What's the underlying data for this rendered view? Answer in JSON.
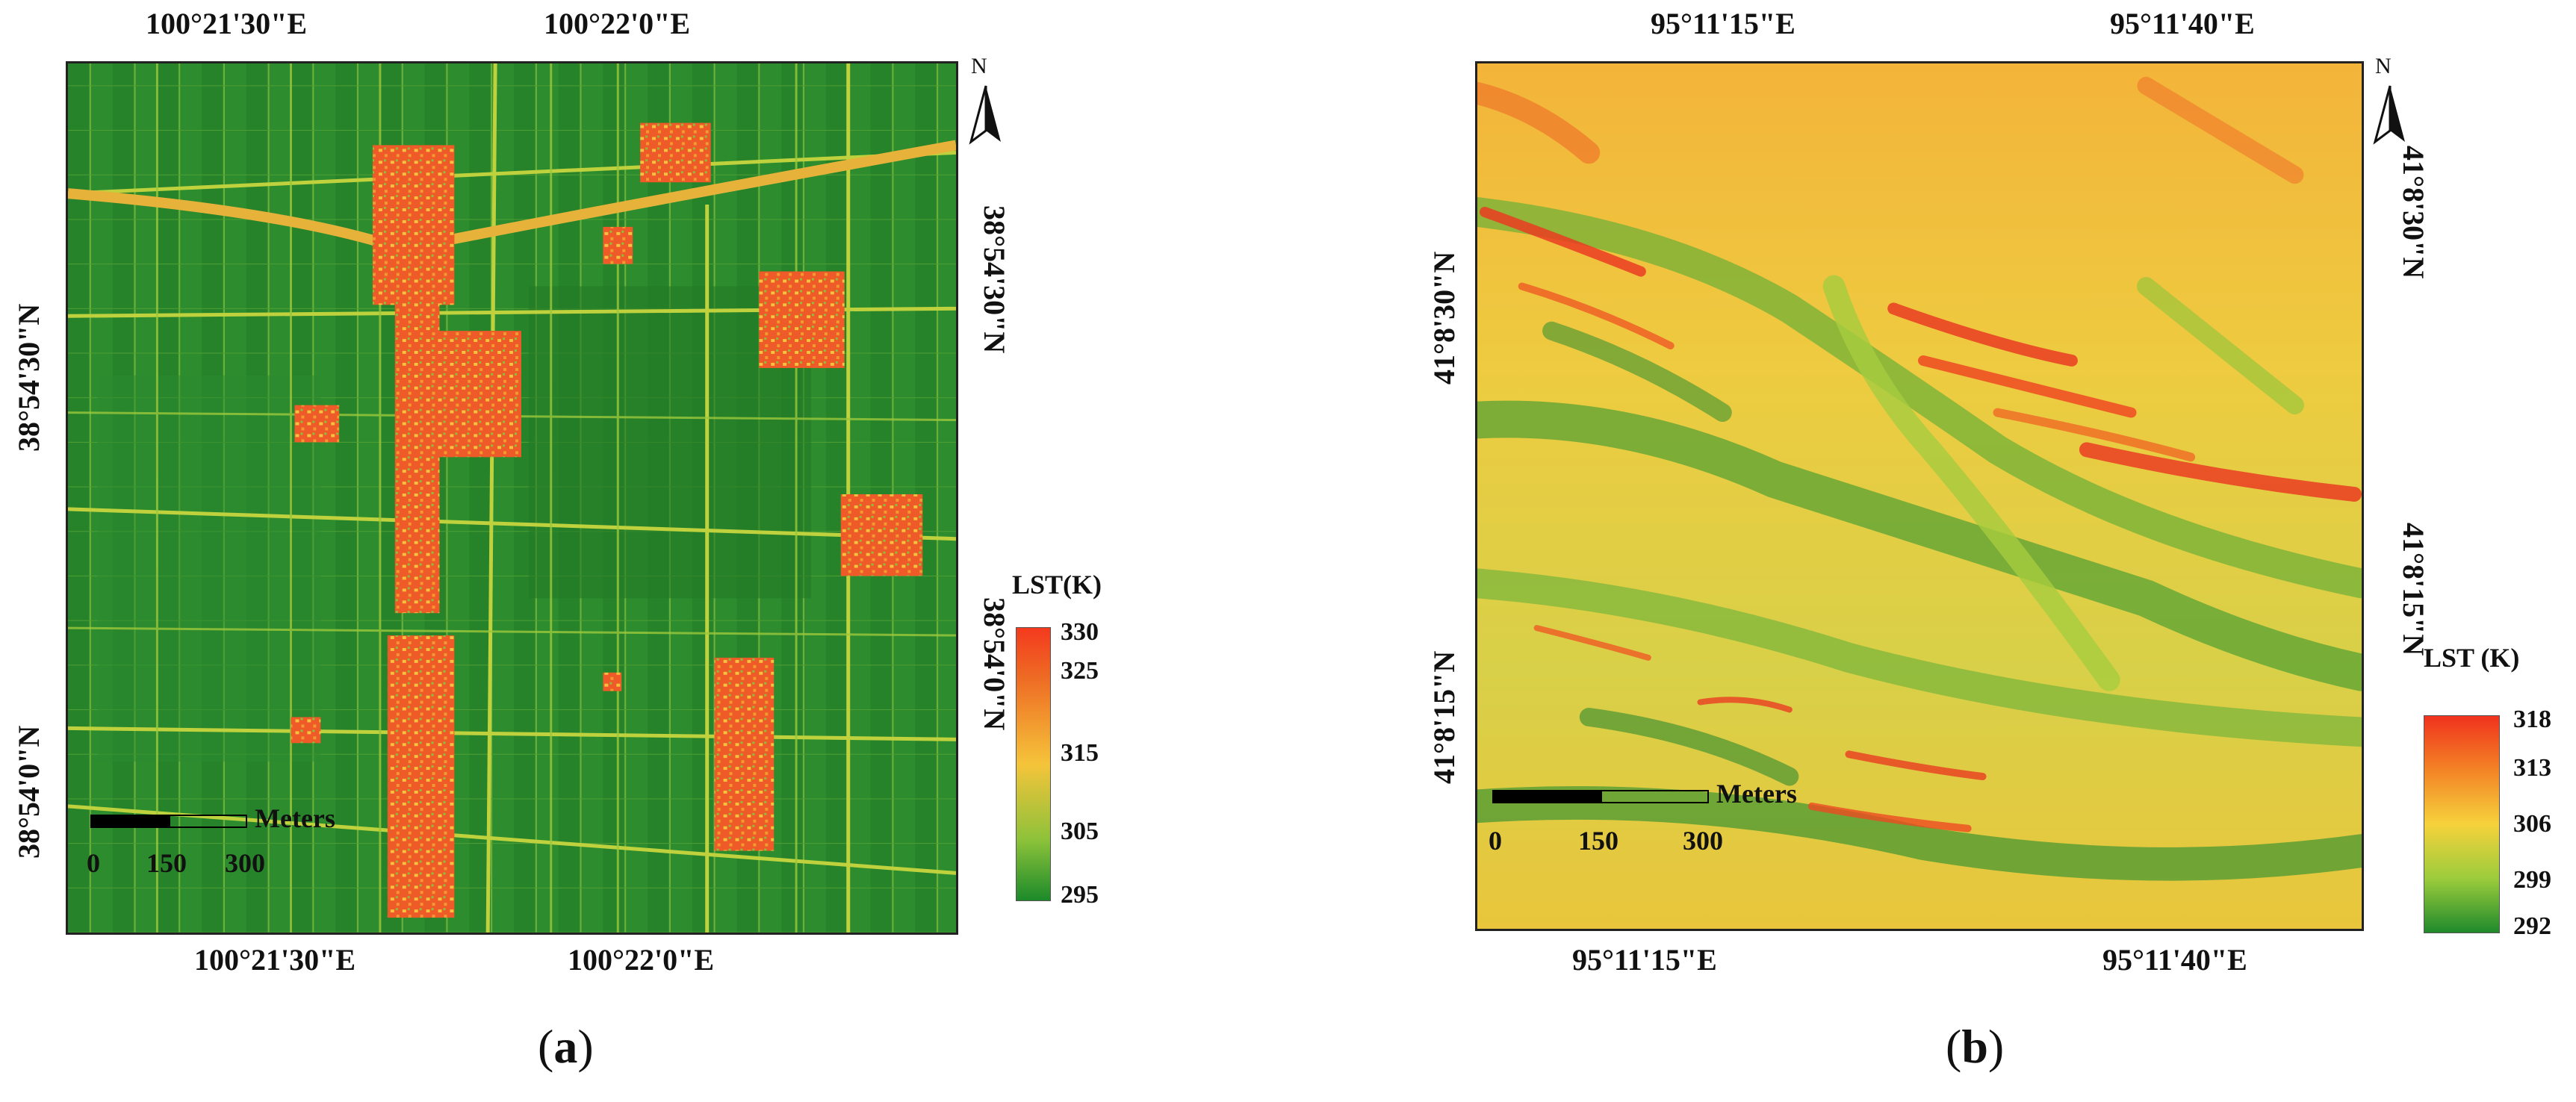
{
  "panel_a": {
    "caption_open": "(",
    "caption_letter": "a",
    "caption_close": ")",
    "top_lon_labels": [
      "100°21'30\"E",
      "100°22'0\"E"
    ],
    "bottom_lon_labels": [
      "100°21'30\"E",
      "100°22'0\"E"
    ],
    "left_lat_labels": [
      "38°54'30\"N",
      "38°54'0\"N"
    ],
    "right_lat_labels": [
      "38°54'30\"N",
      "38°54'0\"N"
    ],
    "north_label": "N",
    "legend": {
      "title": "LST(K)",
      "values": [
        "330",
        "325",
        "315",
        "305",
        "295"
      ],
      "colors": [
        "#f43a1e",
        "#ee6a24",
        "#f5c43a",
        "#8cc23a",
        "#1c8a2a"
      ]
    },
    "scale": {
      "unit": "Meters",
      "ticks": [
        "0",
        "150",
        "300"
      ]
    },
    "colors": {
      "field": "#2c8c2e",
      "field_dark": "#1f7424",
      "line": "#c7d640",
      "hot": "#ee5a28"
    }
  },
  "panel_b": {
    "caption_open": "(",
    "caption_letter": "b",
    "caption_close": ")",
    "top_lon_labels": [
      "95°11'15\"E",
      "95°11'40\"E"
    ],
    "bottom_lon_labels": [
      "95°11'15\"E",
      "95°11'40\"E"
    ],
    "left_lat_labels": [
      "41°8'30\"N",
      "41°8'15\"N"
    ],
    "right_lat_labels": [
      "41°8'30\"N",
      "41°8'15\"N"
    ],
    "north_label": "N",
    "legend": {
      "title": "LST (K)",
      "values": [
        "318",
        "313",
        "306",
        "299",
        "292"
      ],
      "colors": [
        "#f0321e",
        "#f37a24",
        "#f6d23c",
        "#9ccc3c",
        "#1f8a2c"
      ]
    },
    "scale": {
      "unit": "Meters",
      "ticks": [
        "0",
        "150",
        "300"
      ]
    },
    "colors": {
      "base": "#f2c93a",
      "warm": "#f08a2c",
      "hot": "#ea3c22",
      "cool": "#8cc43a",
      "cold": "#2e8f32"
    }
  }
}
